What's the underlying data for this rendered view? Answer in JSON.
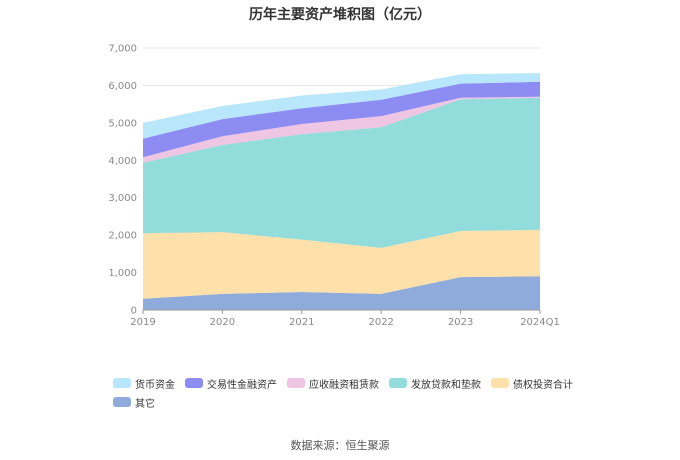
{
  "source": "数据来源：恒生聚源",
  "chart_data": {
    "type": "area",
    "stacked": true,
    "title": "历年主要资产堆积图（亿元）",
    "xlabel": "",
    "ylabel": "",
    "categories": [
      "2019",
      "2020",
      "2021",
      "2022",
      "2023",
      "2024Q1"
    ],
    "y_ticks": [
      "0",
      "1,000",
      "2,000",
      "3,000",
      "4,000",
      "5,000",
      "6,000",
      "7,000"
    ],
    "ylim": [
      0,
      7000
    ],
    "grid": true,
    "legend_position": "bottom-left",
    "series": [
      {
        "name": "其它",
        "color": "#8fabdc",
        "values": [
          300,
          430,
          480,
          430,
          880,
          900
        ]
      },
      {
        "name": "债权投资合计",
        "color": "#fde0aa",
        "values": [
          1750,
          1650,
          1400,
          1230,
          1230,
          1240
        ]
      },
      {
        "name": "发放贷款和垫款",
        "color": "#92dcdc",
        "values": [
          1880,
          2330,
          2820,
          3220,
          3520,
          3530
        ]
      },
      {
        "name": "应收融资租赁款",
        "color": "#eec5e2",
        "values": [
          150,
          230,
          270,
          300,
          40,
          30
        ]
      },
      {
        "name": "交易性金融资产",
        "color": "#8c8cf2",
        "values": [
          500,
          460,
          420,
          440,
          380,
          400
        ]
      },
      {
        "name": "货币资金",
        "color": "#b8e6fb",
        "values": [
          420,
          350,
          340,
          270,
          250,
          230
        ]
      }
    ],
    "legend_order": [
      "货币资金",
      "交易性金融资产",
      "应收融资租赁款",
      "发放贷款和垫款",
      "债权投资合计",
      "其它"
    ]
  }
}
